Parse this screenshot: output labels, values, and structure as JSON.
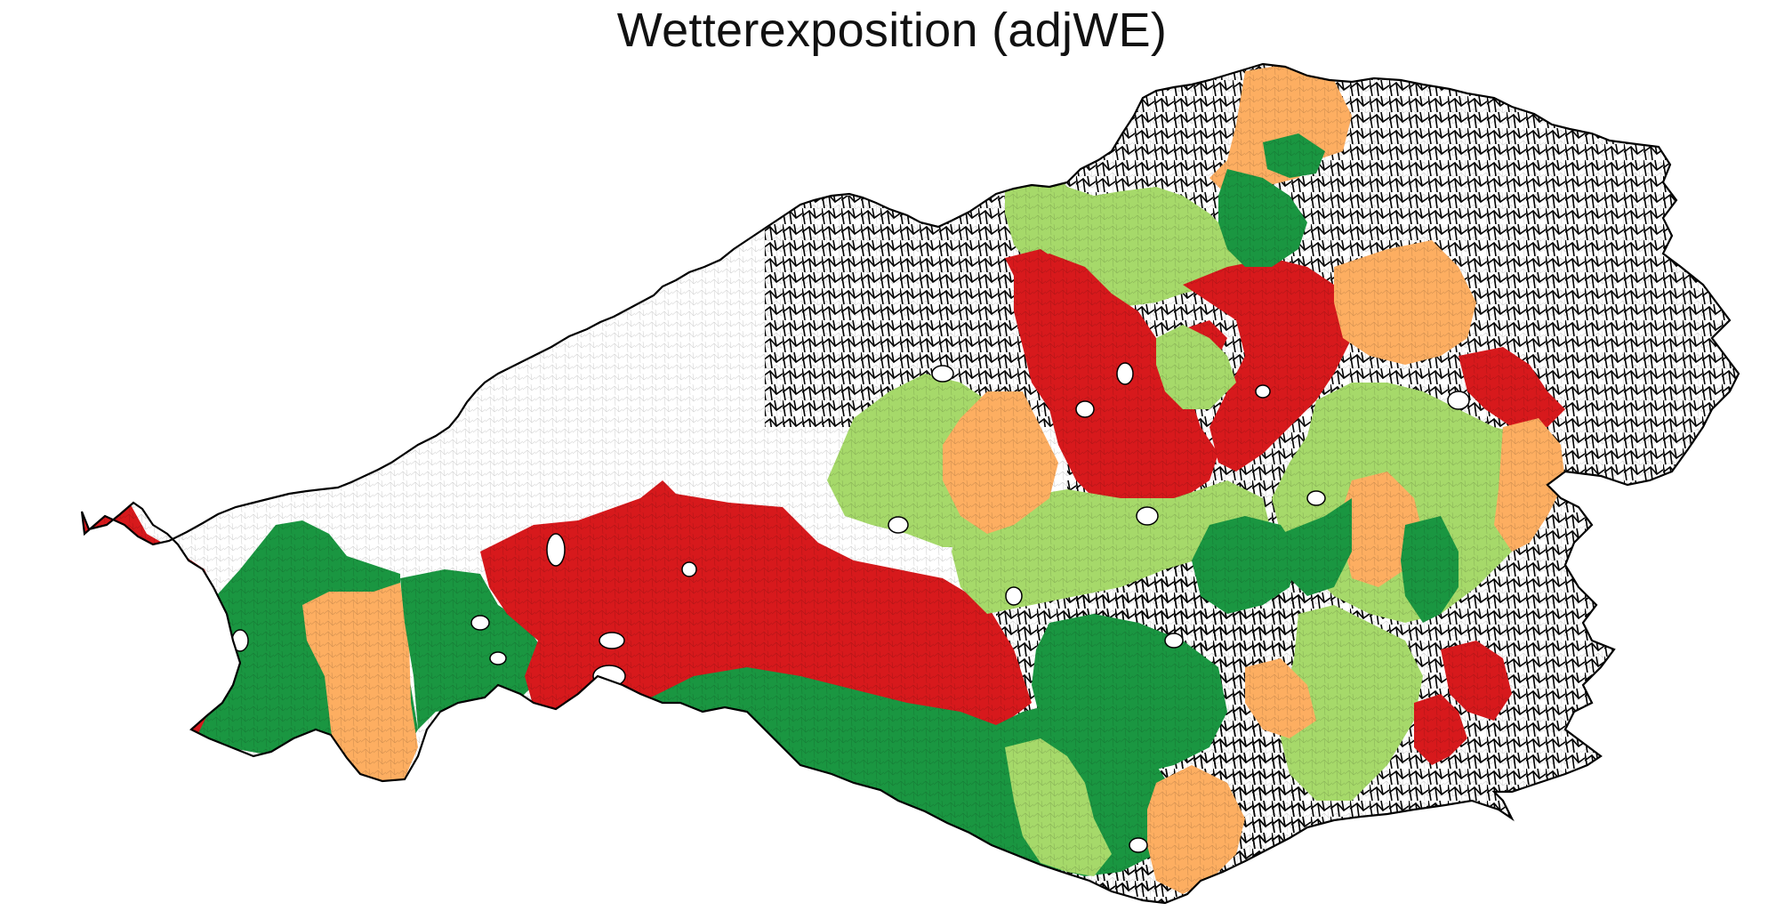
{
  "title": "Wetterexposition (adjWE)",
  "colors": {
    "red": "#d7191c",
    "orange": "#fdae61",
    "light_green": "#a6d96a",
    "dark_green": "#1a9641",
    "no_data": "#ffffff",
    "outline": "#000000"
  }
}
